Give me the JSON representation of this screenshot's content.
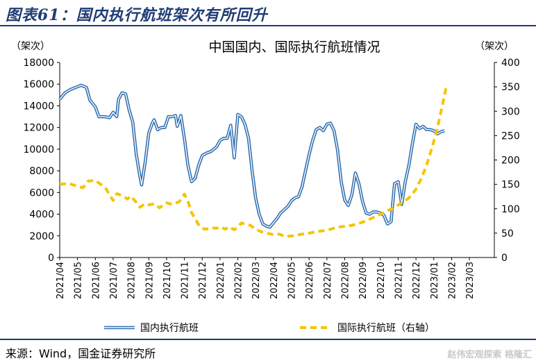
{
  "figure_title": "图表61：国内执行航班架次有所回升",
  "source_text": "来源：Wind，国金证券研究所",
  "watermark": "赵伟宏观探索 格隆汇",
  "colors": {
    "domestic": "#2f6eb0",
    "international": "#f5c400",
    "title": "#1f3c74"
  },
  "chart_data": {
    "type": "line",
    "title": "中国国内、国际执行航班情况",
    "ylabel_left": "（架次）",
    "ylabel_right": "（架次）",
    "ylim_left": [
      0,
      18000
    ],
    "ylim_right": [
      0,
      400
    ],
    "yticks_left": [
      0,
      2000,
      4000,
      6000,
      8000,
      10000,
      12000,
      14000,
      16000,
      18000
    ],
    "yticks_right": [
      0,
      50,
      100,
      150,
      200,
      250,
      300,
      350,
      400
    ],
    "xlim": [
      0,
      24.4
    ],
    "categories": [
      "2021/04",
      "2021/05",
      "2021/06",
      "2021/07",
      "2021/08",
      "2021/09",
      "2021/10",
      "2021/11",
      "2021/12",
      "2022/01",
      "2022/02",
      "2022/03",
      "2022/04",
      "2022/05",
      "2022/06",
      "2022/07",
      "2022/08",
      "2022/09",
      "2022/10",
      "2022/11",
      "2022/12",
      "2023/01",
      "2023/02",
      "2023/03"
    ],
    "legend_position": "bottom",
    "series": [
      {
        "name": "国内执行航班",
        "axis": "left",
        "style": "solid",
        "points": [
          [
            0,
            14600
          ],
          [
            0.3,
            15200
          ],
          [
            0.6,
            15500
          ],
          [
            0.9,
            15700
          ],
          [
            1.2,
            15900
          ],
          [
            1.5,
            15700
          ],
          [
            1.7,
            14500
          ],
          [
            2.0,
            13900
          ],
          [
            2.2,
            13000
          ],
          [
            2.5,
            13000
          ],
          [
            2.8,
            12900
          ],
          [
            3.0,
            13400
          ],
          [
            3.2,
            13000
          ],
          [
            3.3,
            14600
          ],
          [
            3.5,
            15200
          ],
          [
            3.7,
            15100
          ],
          [
            3.9,
            13600
          ],
          [
            4.1,
            12500
          ],
          [
            4.3,
            9500
          ],
          [
            4.5,
            7500
          ],
          [
            4.6,
            6700
          ],
          [
            4.8,
            8800
          ],
          [
            5.0,
            11500
          ],
          [
            5.2,
            12400
          ],
          [
            5.3,
            12700
          ],
          [
            5.5,
            11800
          ],
          [
            5.7,
            12000
          ],
          [
            5.9,
            12000
          ],
          [
            6.1,
            13000
          ],
          [
            6.3,
            13000
          ],
          [
            6.5,
            13100
          ],
          [
            6.6,
            12100
          ],
          [
            6.8,
            13100
          ],
          [
            7.0,
            11000
          ],
          [
            7.2,
            8500
          ],
          [
            7.4,
            7000
          ],
          [
            7.6,
            7300
          ],
          [
            7.8,
            8500
          ],
          [
            8.0,
            9400
          ],
          [
            8.2,
            9600
          ],
          [
            8.5,
            9800
          ],
          [
            8.8,
            10200
          ],
          [
            9.0,
            10800
          ],
          [
            9.2,
            11000
          ],
          [
            9.4,
            11000
          ],
          [
            9.6,
            12200
          ],
          [
            9.8,
            9200
          ],
          [
            10.0,
            13200
          ],
          [
            10.2,
            13000
          ],
          [
            10.4,
            12300
          ],
          [
            10.6,
            11000
          ],
          [
            10.8,
            8000
          ],
          [
            11.0,
            5500
          ],
          [
            11.2,
            4000
          ],
          [
            11.4,
            3100
          ],
          [
            11.6,
            2900
          ],
          [
            11.8,
            2800
          ],
          [
            12.0,
            3200
          ],
          [
            12.2,
            3600
          ],
          [
            12.4,
            4100
          ],
          [
            12.6,
            4400
          ],
          [
            12.8,
            4700
          ],
          [
            13.0,
            5200
          ],
          [
            13.2,
            5500
          ],
          [
            13.4,
            5600
          ],
          [
            13.6,
            6500
          ],
          [
            13.8,
            8000
          ],
          [
            14.0,
            9500
          ],
          [
            14.2,
            10800
          ],
          [
            14.4,
            11800
          ],
          [
            14.6,
            12000
          ],
          [
            14.8,
            11700
          ],
          [
            15.0,
            12300
          ],
          [
            15.2,
            12400
          ],
          [
            15.4,
            11700
          ],
          [
            15.6,
            9900
          ],
          [
            15.8,
            7000
          ],
          [
            16.0,
            5300
          ],
          [
            16.2,
            4800
          ],
          [
            16.4,
            5800
          ],
          [
            16.6,
            7800
          ],
          [
            16.8,
            6800
          ],
          [
            17.0,
            5200
          ],
          [
            17.2,
            4100
          ],
          [
            17.4,
            4000
          ],
          [
            17.6,
            4200
          ],
          [
            17.8,
            4200
          ],
          [
            18.0,
            4100
          ],
          [
            18.2,
            3900
          ],
          [
            18.4,
            3100
          ],
          [
            18.6,
            3300
          ],
          [
            18.8,
            6800
          ],
          [
            19.0,
            7000
          ],
          [
            19.2,
            4900
          ],
          [
            19.4,
            7000
          ],
          [
            19.6,
            8500
          ],
          [
            19.8,
            10500
          ],
          [
            20.0,
            12300
          ],
          [
            20.2,
            11900
          ],
          [
            20.4,
            12100
          ],
          [
            20.6,
            11800
          ],
          [
            20.8,
            11800
          ],
          [
            21.0,
            11700
          ],
          [
            21.2,
            11400
          ],
          [
            21.4,
            11600
          ],
          [
            21.6,
            11700
          ]
        ]
      },
      {
        "name": "国际执行航班（右轴）",
        "axis": "right",
        "style": "dashed",
        "points": [
          [
            0,
            150
          ],
          [
            0.5,
            152
          ],
          [
            1.0,
            146
          ],
          [
            1.3,
            143
          ],
          [
            1.6,
            157
          ],
          [
            2.0,
            158
          ],
          [
            2.3,
            150
          ],
          [
            2.6,
            141
          ],
          [
            2.8,
            128
          ],
          [
            3.0,
            117
          ],
          [
            3.2,
            131
          ],
          [
            3.5,
            127
          ],
          [
            3.8,
            120
          ],
          [
            4.0,
            126
          ],
          [
            4.3,
            113
          ],
          [
            4.5,
            103
          ],
          [
            4.8,
            110
          ],
          [
            5.0,
            108
          ],
          [
            5.3,
            110
          ],
          [
            5.6,
            102
          ],
          [
            6.0,
            112
          ],
          [
            6.3,
            109
          ],
          [
            6.7,
            114
          ],
          [
            7.0,
            130
          ],
          [
            7.2,
            115
          ],
          [
            7.4,
            92
          ],
          [
            7.6,
            80
          ],
          [
            7.8,
            67
          ],
          [
            8.0,
            60
          ],
          [
            8.2,
            58
          ],
          [
            8.5,
            61
          ],
          [
            8.8,
            60
          ],
          [
            9.0,
            63
          ],
          [
            9.3,
            58
          ],
          [
            9.5,
            63
          ],
          [
            9.8,
            57
          ],
          [
            10.0,
            62
          ],
          [
            10.2,
            71
          ],
          [
            10.4,
            68
          ],
          [
            10.7,
            66
          ],
          [
            11.0,
            58
          ],
          [
            11.3,
            53
          ],
          [
            11.6,
            50
          ],
          [
            12.0,
            47
          ],
          [
            12.3,
            48
          ],
          [
            12.6,
            44
          ],
          [
            13.0,
            44
          ],
          [
            13.3,
            46
          ],
          [
            13.6,
            48
          ],
          [
            14.0,
            50
          ],
          [
            14.4,
            53
          ],
          [
            14.8,
            55
          ],
          [
            15.2,
            58
          ],
          [
            15.6,
            62
          ],
          [
            16.0,
            64
          ],
          [
            16.4,
            66
          ],
          [
            16.8,
            70
          ],
          [
            17.2,
            75
          ],
          [
            17.6,
            82
          ],
          [
            18.0,
            89
          ],
          [
            18.4,
            96
          ],
          [
            18.8,
            103
          ],
          [
            19.2,
            112
          ],
          [
            19.6,
            122
          ],
          [
            20.0,
            140
          ],
          [
            20.3,
            162
          ],
          [
            20.6,
            190
          ],
          [
            20.9,
            225
          ],
          [
            21.2,
            265
          ],
          [
            21.5,
            315
          ],
          [
            21.7,
            350
          ]
        ]
      }
    ]
  }
}
